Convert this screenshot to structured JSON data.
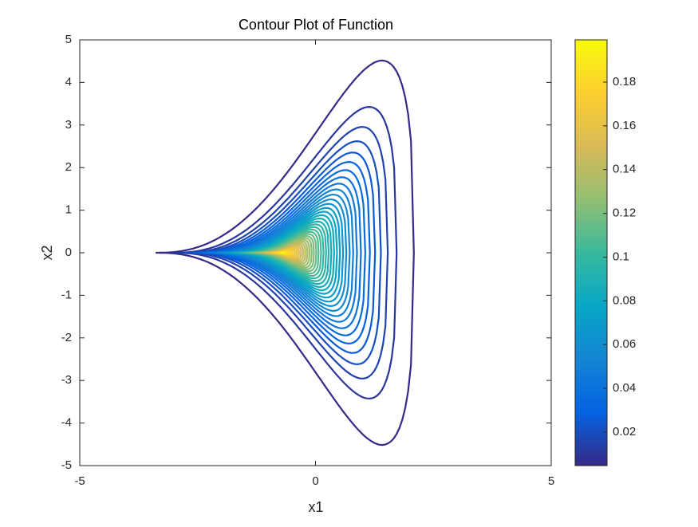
{
  "chart_data": {
    "type": "contour",
    "title": "Contour Plot of Function",
    "x_label": "x1",
    "y_label": "x2",
    "xlim": [
      -5,
      5
    ],
    "xticks": [
      -5,
      0,
      5
    ],
    "ylim": [
      -5,
      5
    ],
    "yticks": [
      -5,
      -4,
      -3,
      -2,
      -1,
      0,
      1,
      2,
      3,
      4,
      5
    ],
    "levels": [
      0.005,
      0.01,
      0.015,
      0.02,
      0.025,
      0.03,
      0.035,
      0.04,
      0.045,
      0.05,
      0.055,
      0.06,
      0.065,
      0.07,
      0.075,
      0.08,
      0.085,
      0.09,
      0.095,
      0.1,
      0.105,
      0.11,
      0.115,
      0.12,
      0.125,
      0.13,
      0.135,
      0.14,
      0.145,
      0.15,
      0.155,
      0.16,
      0.165,
      0.17,
      0.175,
      0.18,
      0.185,
      0.19,
      0.195
    ],
    "colormap": "parula",
    "clim": [
      0.0047,
      0.1993
    ],
    "colorbar_ticks": [
      0.02,
      0.04,
      0.06,
      0.08,
      0.1,
      0.12,
      0.14,
      0.16,
      0.18
    ]
  }
}
